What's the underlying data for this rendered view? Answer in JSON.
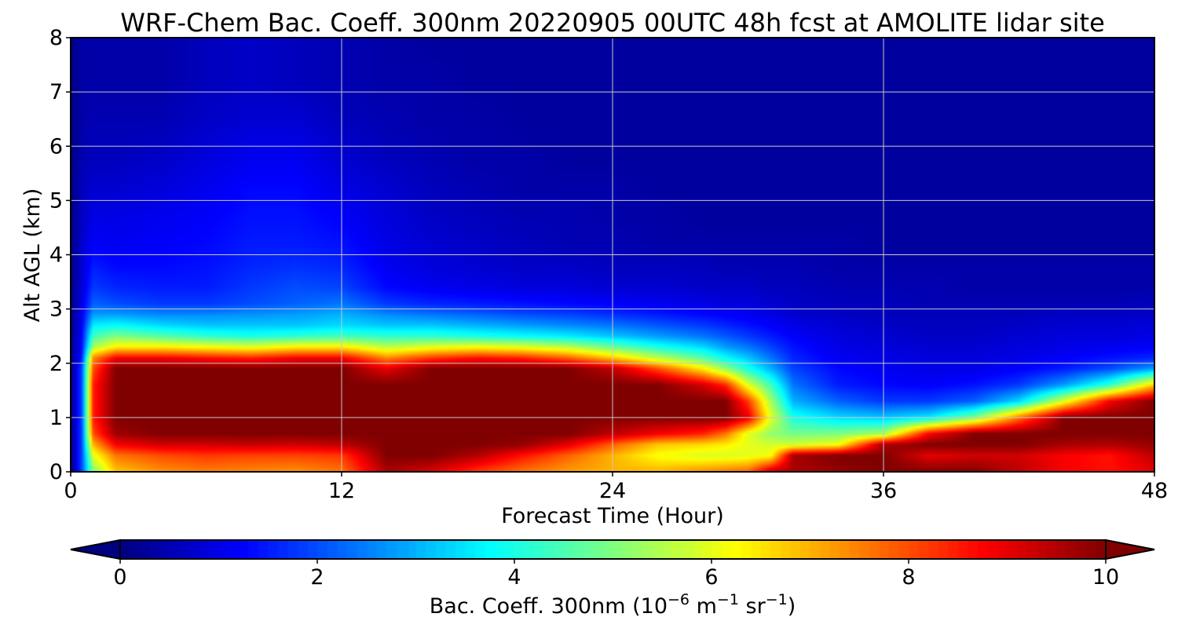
{
  "chart_data": {
    "type": "heatmap",
    "title": "WRF-Chem Bac. Coeff. 300nm  20220905 00UTC 48h fcst at AMOLITE lidar site",
    "xlabel": "Forecast Time (Hour)",
    "ylabel": "Alt AGL (km)",
    "xlim": [
      0,
      48
    ],
    "ylim": [
      0,
      8
    ],
    "xticks": [
      0,
      12,
      24,
      36,
      48
    ],
    "yticks": [
      0,
      1,
      2,
      3,
      4,
      5,
      6,
      7,
      8
    ],
    "grid": true,
    "colormap": "jet",
    "colorbar": {
      "label": "Bac. Coeff. 300nm",
      "units": "(10",
      "units_exp1": "−6",
      "units_mid": " m",
      "units_exp2": "−1",
      "units_mid2": " sr",
      "units_exp3": "−1",
      "units_end": ")",
      "ticks": [
        0,
        2,
        4,
        6,
        8,
        10
      ],
      "range": [
        0,
        10
      ],
      "extend": "both",
      "orientation": "horizontal"
    },
    "time_hours": [
      0,
      0.5,
      1,
      2,
      4,
      6,
      8,
      10,
      12,
      14,
      16,
      18,
      20,
      22,
      24,
      26,
      28,
      29,
      30,
      31,
      32,
      34,
      36,
      38,
      40,
      42,
      44,
      46,
      48
    ],
    "altitude_km": [
      0,
      0.3,
      0.5,
      0.7,
      1.0,
      1.3,
      1.6,
      1.9,
      2.1,
      2.3,
      2.5,
      2.7,
      2.9,
      3.1,
      3.4,
      3.8,
      4.2,
      4.7,
      5.2,
      5.8,
      6.5,
      7.2,
      8.0
    ],
    "values": [
      [
        0,
        2,
        5,
        6.8,
        7.3,
        7.5,
        7.4,
        7.3,
        7.6,
        9.6,
        9.1,
        8.2,
        7.6,
        7.2,
        7.0,
        7.0,
        7.4,
        7.6,
        7.8,
        9.4,
        9.6,
        9.8,
        10,
        10,
        10,
        9.4,
        8.8,
        8.6,
        9.0
      ],
      [
        0,
        2,
        6,
        7.6,
        8.0,
        8.2,
        8.1,
        8.1,
        8.2,
        10,
        10,
        9.5,
        8.6,
        7.8,
        7.0,
        6.2,
        5.9,
        5.9,
        6.0,
        6.2,
        9.6,
        10,
        10,
        9.0,
        9.2,
        9.2,
        8.8,
        8.6,
        9.4
      ],
      [
        0,
        2,
        7,
        8.8,
        9.2,
        9.2,
        9.3,
        9.2,
        9.4,
        10,
        10,
        10,
        9.8,
        9.0,
        7.8,
        6.8,
        6.6,
        6.4,
        6.0,
        5.8,
        5.8,
        6.2,
        9.6,
        10,
        10,
        10,
        9.6,
        9.5,
        9.8
      ],
      [
        0,
        2,
        8,
        9.7,
        10,
        10,
        10,
        10,
        10,
        10,
        10,
        10,
        10,
        10,
        9.4,
        8.8,
        8.4,
        7.6,
        6.0,
        5.2,
        4.9,
        5.0,
        5.4,
        8.8,
        10,
        10,
        10,
        10,
        10
      ],
      [
        0,
        2,
        8.5,
        10,
        10,
        10,
        10,
        10,
        10,
        10,
        10,
        10,
        10,
        10,
        10,
        10,
        10,
        10,
        9.0,
        6.0,
        4.0,
        3.4,
        3.2,
        3.6,
        5.0,
        7.6,
        10,
        10,
        10
      ],
      [
        0,
        2,
        8.5,
        10,
        10,
        10,
        10,
        10,
        10,
        10,
        10,
        10,
        10,
        10,
        10,
        10,
        10,
        10,
        8.2,
        5.4,
        3.0,
        2.2,
        1.8,
        1.8,
        2.2,
        3.4,
        6.0,
        8.8,
        10
      ],
      [
        0,
        2,
        8.5,
        10,
        10,
        10,
        10,
        10,
        10,
        10,
        10,
        10,
        10,
        10,
        10,
        10,
        9.2,
        8.4,
        6.0,
        4.4,
        2.4,
        1.5,
        1.3,
        1.2,
        1.4,
        1.8,
        2.8,
        4.2,
        6.8
      ],
      [
        0,
        2,
        8,
        10,
        10,
        10,
        10,
        10,
        10,
        9.0,
        10,
        10,
        10,
        10,
        9.4,
        8.0,
        6.4,
        5.2,
        4.0,
        3.0,
        1.9,
        1.3,
        1.1,
        1.0,
        1.0,
        1.2,
        1.5,
        2.0,
        2.8
      ],
      [
        0,
        1.6,
        7.4,
        8.8,
        8.8,
        8.6,
        8.4,
        8.8,
        8.8,
        7.4,
        8.2,
        8.6,
        8.4,
        7.8,
        6.8,
        5.6,
        4.6,
        3.8,
        3.2,
        2.4,
        1.6,
        1.1,
        1.0,
        0.9,
        0.9,
        1.0,
        1.2,
        1.4,
        1.6
      ],
      [
        0,
        1.4,
        5.4,
        6.4,
        6.4,
        6.2,
        6.0,
        6.4,
        6.4,
        5.6,
        6.0,
        6.2,
        6.0,
        5.6,
        4.8,
        4.0,
        3.4,
        2.8,
        2.4,
        1.9,
        1.4,
        1.0,
        0.9,
        0.8,
        0.8,
        0.9,
        1.0,
        1.1,
        1.2
      ],
      [
        0,
        1.3,
        4.4,
        5.0,
        4.6,
        4.2,
        4.0,
        4.2,
        4.4,
        4.2,
        4.2,
        4.0,
        3.8,
        3.6,
        3.2,
        2.8,
        2.4,
        2.1,
        1.8,
        1.5,
        1.2,
        0.9,
        0.8,
        0.7,
        0.7,
        0.8,
        0.9,
        0.9,
        1.0
      ],
      [
        0,
        1.2,
        3.6,
        3.8,
        3.4,
        3.2,
        3.2,
        3.2,
        3.4,
        3.2,
        3.2,
        3.0,
        2.8,
        2.6,
        2.4,
        2.1,
        1.8,
        1.6,
        1.4,
        1.2,
        1.0,
        0.8,
        0.7,
        0.6,
        0.6,
        0.7,
        0.8,
        0.8,
        0.9
      ],
      [
        0,
        1.1,
        2.8,
        2.8,
        2.6,
        2.6,
        2.7,
        2.8,
        3.0,
        2.6,
        2.4,
        2.2,
        2.0,
        1.9,
        1.7,
        1.5,
        1.3,
        1.2,
        1.1,
        1.0,
        0.8,
        0.7,
        0.6,
        0.6,
        0.6,
        0.6,
        0.7,
        0.7,
        0.7
      ],
      [
        0,
        1.0,
        2.2,
        2.0,
        1.8,
        1.8,
        2.0,
        2.2,
        2.4,
        1.8,
        1.6,
        1.5,
        1.4,
        1.3,
        1.2,
        1.1,
        1.0,
        0.9,
        0.9,
        0.8,
        0.7,
        0.6,
        0.6,
        0.5,
        0.5,
        0.5,
        0.5,
        0.5,
        0.6
      ],
      [
        0,
        0.9,
        1.8,
        1.6,
        1.5,
        1.5,
        1.8,
        2.0,
        1.9,
        1.3,
        1.1,
        1.0,
        0.9,
        0.9,
        0.8,
        0.8,
        0.7,
        0.7,
        0.7,
        0.6,
        0.6,
        0.5,
        0.5,
        0.5,
        0.4,
        0.4,
        0.4,
        0.4,
        0.4
      ],
      [
        0,
        0.8,
        1.5,
        1.3,
        1.3,
        1.4,
        1.6,
        1.7,
        1.6,
        1.1,
        0.9,
        0.8,
        0.7,
        0.7,
        0.6,
        0.6,
        0.6,
        0.5,
        0.5,
        0.5,
        0.5,
        0.4,
        0.4,
        0.4,
        0.4,
        0.4,
        0.4,
        0.4,
        0.4
      ],
      [
        0,
        0.8,
        1.2,
        1.1,
        1.2,
        1.3,
        1.5,
        1.5,
        1.4,
        1.0,
        0.8,
        0.7,
        0.6,
        0.5,
        0.5,
        0.4,
        0.4,
        0.4,
        0.4,
        0.4,
        0.4,
        0.4,
        0.3,
        0.3,
        0.3,
        0.3,
        0.3,
        0.3,
        0.3
      ],
      [
        0,
        0.7,
        1.0,
        1.0,
        1.1,
        1.2,
        1.4,
        1.4,
        1.2,
        0.9,
        0.7,
        0.6,
        0.5,
        0.5,
        0.4,
        0.4,
        0.3,
        0.3,
        0.3,
        0.3,
        0.3,
        0.3,
        0.3,
        0.3,
        0.3,
        0.3,
        0.3,
        0.3,
        0.3
      ],
      [
        0,
        0.6,
        0.8,
        0.8,
        0.9,
        1.1,
        1.3,
        1.3,
        1.0,
        0.8,
        0.6,
        0.5,
        0.4,
        0.4,
        0.4,
        0.3,
        0.3,
        0.3,
        0.3,
        0.3,
        0.3,
        0.3,
        0.3,
        0.3,
        0.3,
        0.3,
        0.3,
        0.3,
        0.3
      ],
      [
        0,
        0.5,
        0.6,
        0.6,
        0.7,
        0.9,
        1.1,
        1.1,
        0.8,
        0.6,
        0.5,
        0.4,
        0.4,
        0.3,
        0.3,
        0.3,
        0.3,
        0.3,
        0.3,
        0.3,
        0.3,
        0.3,
        0.3,
        0.3,
        0.3,
        0.3,
        0.3,
        0.3,
        0.3
      ],
      [
        0,
        0.4,
        0.5,
        0.5,
        0.5,
        0.7,
        0.8,
        0.8,
        0.6,
        0.5,
        0.4,
        0.4,
        0.3,
        0.3,
        0.3,
        0.3,
        0.3,
        0.3,
        0.3,
        0.3,
        0.3,
        0.3,
        0.3,
        0.3,
        0.3,
        0.3,
        0.3,
        0.3,
        0.3
      ],
      [
        0,
        0.4,
        0.4,
        0.4,
        0.4,
        0.6,
        0.7,
        0.6,
        0.5,
        0.4,
        0.4,
        0.3,
        0.3,
        0.3,
        0.3,
        0.3,
        0.3,
        0.3,
        0.3,
        0.3,
        0.3,
        0.3,
        0.3,
        0.3,
        0.3,
        0.3,
        0.3,
        0.3,
        0.3
      ],
      [
        0,
        0.4,
        0.4,
        0.4,
        0.4,
        0.6,
        0.7,
        0.6,
        0.5,
        0.4,
        0.3,
        0.3,
        0.3,
        0.3,
        0.3,
        0.3,
        0.3,
        0.3,
        0.3,
        0.3,
        0.3,
        0.3,
        0.3,
        0.3,
        0.3,
        0.3,
        0.3,
        0.3,
        0.3
      ]
    ]
  }
}
